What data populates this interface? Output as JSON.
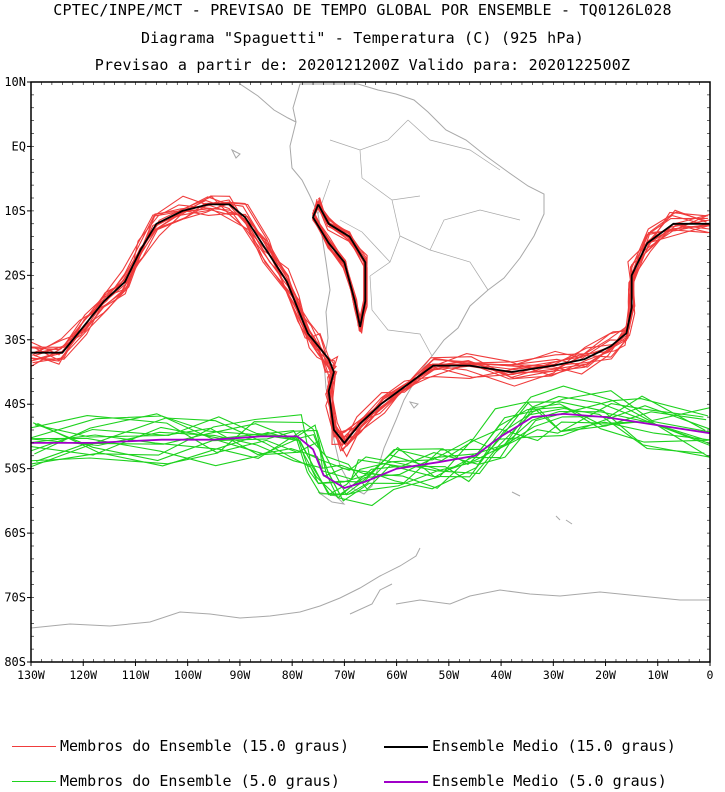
{
  "titles": {
    "line1": "CPTEC/INPE/MCT - PREVISAO DE TEMPO GLOBAL POR ENSEMBLE - TQ0126L028",
    "line2": "Diagrama \"Spaguetti\" - Temperatura (C) (925 hPa)",
    "line3": "Previsao a partir de: 2020121200Z  Valido para: 2020122500Z"
  },
  "axes": {
    "lat_labels": [
      "10N",
      "EQ",
      "10S",
      "20S",
      "30S",
      "40S",
      "50S",
      "60S",
      "70S",
      "80S"
    ],
    "lon_labels": [
      "130W",
      "120W",
      "110W",
      "100W",
      "90W",
      "80W",
      "70W",
      "60W",
      "50W",
      "40W",
      "30W",
      "20W",
      "10W",
      "0"
    ]
  },
  "legend": [
    {
      "label": "Membros do Ensemble (15.0 graus)",
      "color": "#f03c3c"
    },
    {
      "label": "Ensemble Medio (15.0 graus)",
      "color": "#000000"
    },
    {
      "label": "Membros do Ensemble (5.0 graus)",
      "color": "#1ed21e"
    },
    {
      "label": "Ensemble Medio (5.0 graus)",
      "color": "#a000c8"
    }
  ],
  "colors": {
    "coast": "#a8a8a8",
    "frame": "#000000"
  }
}
